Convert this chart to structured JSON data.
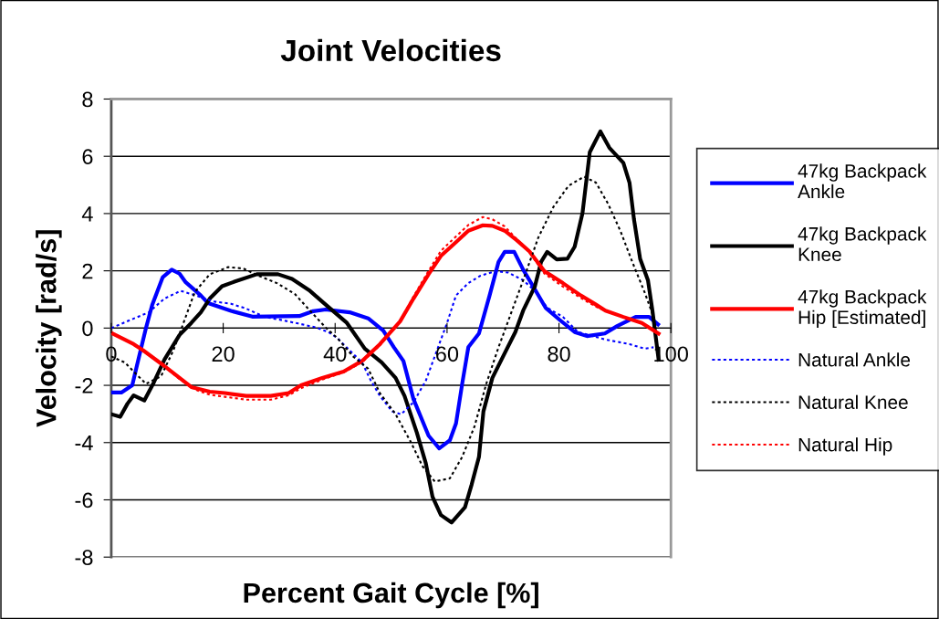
{
  "chart_data": {
    "type": "line",
    "title": "Joint Velocities",
    "xlabel": "Percent Gait Cycle [%]",
    "ylabel": "Velocity [rad/s]",
    "xlim": [
      0,
      100
    ],
    "ylim": [
      -8,
      8
    ],
    "xticks": [
      0,
      20,
      40,
      60,
      80,
      100
    ],
    "yticks": [
      -8,
      -6,
      -4,
      -2,
      0,
      2,
      4,
      6,
      8
    ],
    "grid": "y",
    "legend": "right",
    "marker": "none",
    "series": [
      {
        "name": "47kg Backpack\nAnkle",
        "color": "#0000ff",
        "line_style": "solid",
        "x": [
          0,
          1.8,
          3.75,
          4.6,
          6.2,
          7.3,
          9.2,
          10.8,
          12.2,
          13.3,
          16,
          17.3,
          21.4,
          25.2,
          33.6,
          36.1,
          38.3,
          42.6,
          45.9,
          48.6,
          50.5,
          52.2,
          54,
          56.7,
          58.6,
          60.5,
          61.6,
          62.7,
          63.8,
          65.7,
          67.6,
          69.2,
          70.3,
          72,
          73.6,
          75.7,
          77.6,
          80.1,
          82.8,
          85,
          88.2,
          90.4,
          93.7,
          96.1,
          97.7
        ],
        "values": [
          -2.25,
          -2.25,
          -2.0,
          -1.3,
          0,
          0.8,
          1.78,
          2.04,
          1.9,
          1.6,
          1.14,
          0.87,
          0.6,
          0.4,
          0.42,
          0.59,
          0.65,
          0.55,
          0.34,
          -0.09,
          -0.67,
          -1.15,
          -2.48,
          -3.76,
          -4.2,
          -3.92,
          -3.33,
          -1.95,
          -0.67,
          -0.19,
          1.14,
          2.31,
          2.66,
          2.66,
          2.04,
          1.35,
          0.71,
          0.29,
          -0.14,
          -0.28,
          -0.19,
          0.07,
          0.39,
          0.39,
          0.13
        ]
      },
      {
        "name": "47kg Backpack\nKnee",
        "color": "#000000",
        "line_style": "solid",
        "x": [
          0,
          1.6,
          2.9,
          4,
          5.9,
          7.6,
          9.5,
          12.2,
          14.3,
          16,
          17.6,
          19.8,
          22,
          26,
          29.8,
          32.3,
          35.5,
          38.3,
          42.1,
          45.3,
          48.3,
          50.8,
          52.4,
          54.6,
          56.2,
          57.4,
          58.9,
          60.8,
          63.2,
          64.4,
          65.7,
          66.5,
          68.1,
          70.3,
          72.2,
          73.6,
          75.7,
          76.8,
          77.9,
          79.6,
          81.5,
          82.8,
          84.2,
          85.5,
          87.4,
          89,
          91.5,
          92.6,
          93.4,
          94.5,
          95.9,
          96.7,
          97.8
        ],
        "values": [
          -3.01,
          -3.1,
          -2.64,
          -2.35,
          -2.53,
          -1.9,
          -1.1,
          -0.24,
          0.18,
          0.55,
          1.03,
          1.46,
          1.62,
          1.88,
          1.88,
          1.72,
          1.3,
          0.82,
          0.18,
          -0.72,
          -1.2,
          -1.74,
          -2.37,
          -3.65,
          -4.72,
          -5.89,
          -6.53,
          -6.79,
          -6.26,
          -5.46,
          -4.5,
          -2.91,
          -1.74,
          -0.88,
          -0.14,
          0.61,
          1.46,
          2.31,
          2.66,
          2.4,
          2.42,
          2.84,
          4.01,
          6.14,
          6.87,
          6.3,
          5.77,
          5.08,
          3.8,
          2.42,
          1.67,
          0.61,
          -1.1
        ]
      },
      {
        "name": "47kg Backpack\nHip [Estimated]",
        "color": "#ff0000",
        "line_style": "solid",
        "x": [
          0,
          4,
          5.7,
          8.9,
          12.2,
          14.3,
          17.6,
          20.3,
          24.1,
          28.5,
          31.7,
          33.9,
          37.7,
          41.5,
          44.8,
          48,
          51.6,
          54,
          56.7,
          58.9,
          61.6,
          63.8,
          66.4,
          68.1,
          70.3,
          72.5,
          74.7,
          77.4,
          80.7,
          83.9,
          86.6,
          88.3,
          91.5,
          94.8,
          97.8
        ],
        "values": [
          -0.17,
          -0.56,
          -0.78,
          -1.24,
          -1.74,
          -2.06,
          -2.22,
          -2.27,
          -2.37,
          -2.37,
          -2.27,
          -2.0,
          -1.74,
          -1.52,
          -1.15,
          -0.56,
          0.23,
          1.03,
          1.88,
          2.52,
          3.0,
          3.4,
          3.59,
          3.57,
          3.4,
          3.06,
          2.68,
          1.99,
          1.57,
          1.14,
          0.82,
          0.61,
          0.39,
          0.18,
          -0.19
        ]
      },
      {
        "name": "Natural Ankle",
        "color": "#0000ff",
        "line_style": "dotted",
        "x": [
          0,
          3.5,
          6.7,
          9.5,
          12.4,
          15.4,
          18.2,
          21.4,
          24.1,
          27.4,
          30.7,
          33.4,
          36.6,
          38.8,
          40.4,
          42.6,
          44.8,
          46.4,
          48,
          50.2,
          51.8,
          54,
          56.2,
          58.4,
          60,
          61.6,
          63.8,
          66,
          68.7,
          70.9,
          73.6,
          75.7,
          77.9,
          80.7,
          83.4,
          88.3,
          92.6,
          95.3,
          96.9
        ],
        "values": [
          0,
          0.29,
          0.55,
          1.03,
          1.3,
          1.12,
          0.93,
          0.85,
          0.68,
          0.39,
          0.27,
          0.16,
          0.02,
          -0.14,
          -0.35,
          -0.78,
          -1.2,
          -1.84,
          -2.37,
          -2.91,
          -3.01,
          -2.59,
          -1.84,
          -0.67,
          0.18,
          1.14,
          1.57,
          1.83,
          1.99,
          1.94,
          1.67,
          1.3,
          0.71,
          0.39,
          -0.14,
          -0.4,
          -0.56,
          -0.72,
          -0.67
        ]
      },
      {
        "name": "Natural Knee",
        "color": "#000000",
        "line_style": "dotted",
        "x": [
          0,
          2.4,
          6.2,
          8.9,
          11.1,
          12.7,
          14.9,
          17.6,
          20.9,
          23.6,
          26.3,
          29.6,
          32.8,
          35.5,
          38.3,
          40.4,
          43.2,
          45.9,
          48,
          50.8,
          53.5,
          55.6,
          57.8,
          60.5,
          62.7,
          64.9,
          67,
          69.2,
          71.4,
          73.6,
          76.3,
          79,
          81.7,
          84.5,
          86.6,
          88.8,
          91,
          93.1,
          95.3,
          96.9
        ],
        "values": [
          -0.99,
          -1.2,
          -1.95,
          -1.68,
          -0.78,
          0.07,
          1.25,
          1.88,
          2.13,
          2.08,
          1.83,
          1.57,
          1.19,
          0.61,
          0.02,
          -0.35,
          -0.99,
          -1.42,
          -2.27,
          -3.01,
          -3.97,
          -4.82,
          -5.36,
          -5.25,
          -4.5,
          -3.44,
          -1.95,
          -0.67,
          0.5,
          1.67,
          3.16,
          4.23,
          4.97,
          5.29,
          5.08,
          4.33,
          3.38,
          2.31,
          1.25,
          0.39
        ]
      },
      {
        "name": "Natural Hip",
        "color": "#ff0000",
        "line_style": "dotted",
        "x": [
          0,
          4,
          8.9,
          12.2,
          15,
          17.6,
          20.3,
          24.1,
          28.5,
          31.7,
          33.9,
          37.7,
          41.5,
          44.8,
          48,
          51.6,
          54,
          56.7,
          58.9,
          61.6,
          63.8,
          66.4,
          68.1,
          70.3,
          72.5,
          74.7,
          77.4,
          80.7,
          83.9,
          86.6,
          88.3,
          91.5,
          94.8,
          97.8
        ],
        "values": [
          -0.17,
          -0.56,
          -1.24,
          -1.78,
          -2.15,
          -2.33,
          -2.4,
          -2.5,
          -2.5,
          -2.35,
          -2.1,
          -1.8,
          -1.55,
          -1.2,
          -0.6,
          0.25,
          1.1,
          2.0,
          2.7,
          3.2,
          3.6,
          3.88,
          3.8,
          3.55,
          3.1,
          2.65,
          1.9,
          1.45,
          1.05,
          0.75,
          0.6,
          0.39,
          0.18,
          -0.19
        ]
      }
    ]
  }
}
